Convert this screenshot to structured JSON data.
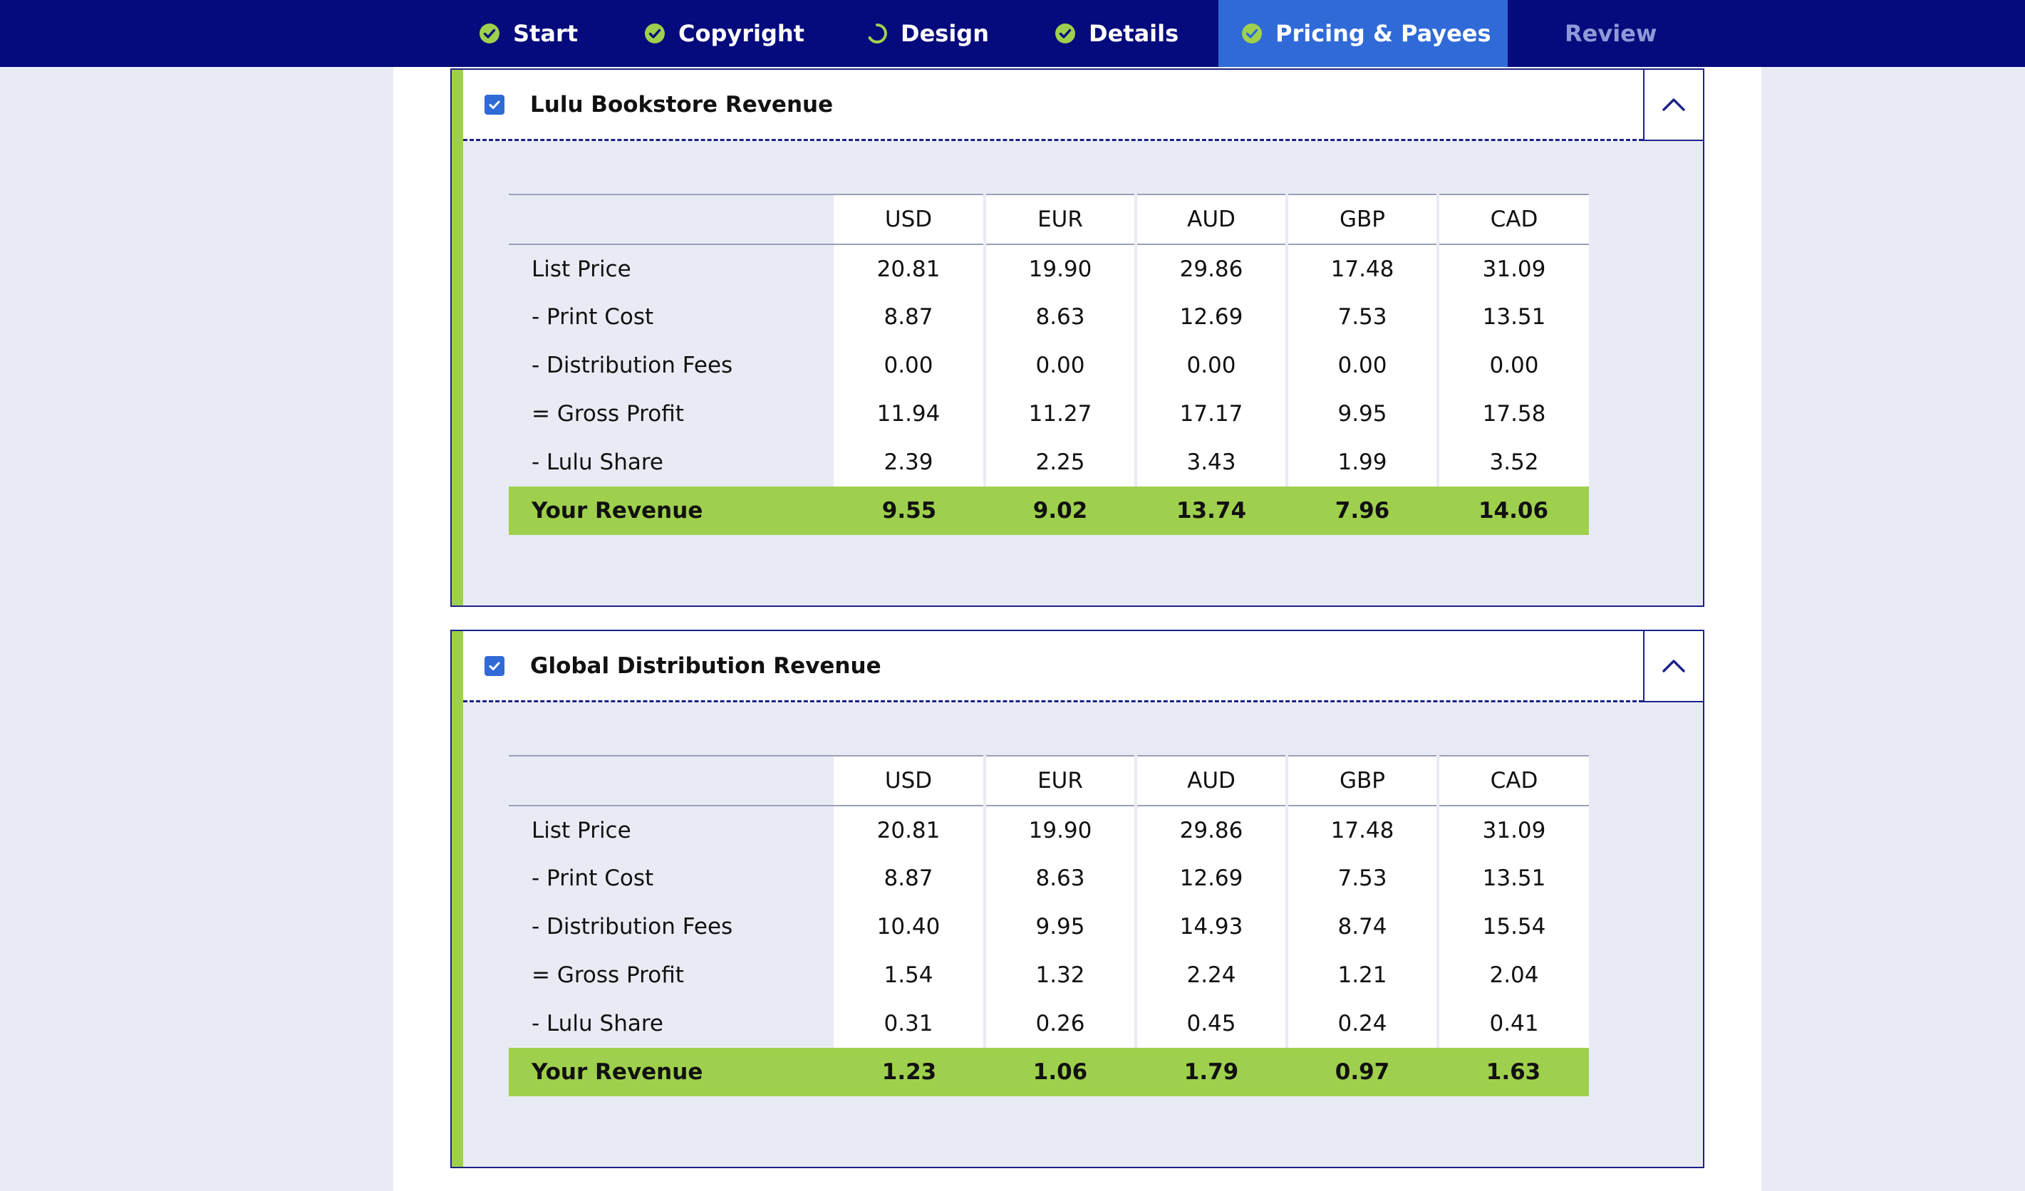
{
  "nav": {
    "tabs": [
      {
        "label": "Start",
        "icon": "check-circle-icon",
        "status": "complete"
      },
      {
        "label": "Copyright",
        "icon": "check-circle-icon",
        "status": "complete"
      },
      {
        "label": "Design",
        "icon": "progress-spinner-icon",
        "status": "in-progress"
      },
      {
        "label": "Details",
        "icon": "check-circle-icon",
        "status": "complete"
      },
      {
        "label": "Pricing & Payees",
        "icon": "check-circle-icon",
        "status": "active"
      },
      {
        "label": "Review",
        "icon": "",
        "status": "disabled"
      }
    ]
  },
  "colors": {
    "nav_bg": "#050b7c",
    "active_tab": "#2f6ad7",
    "accent_green": "#9fd04d",
    "border_navy": "#1b2289",
    "panel_bg": "#e9ebf4"
  },
  "sections": [
    {
      "title": "Lulu Bookstore Revenue",
      "checked": true,
      "currencies": [
        "USD",
        "EUR",
        "AUD",
        "GBP",
        "CAD"
      ],
      "rows": [
        {
          "label": "List Price",
          "values": [
            "20.81",
            "19.90",
            "29.86",
            "17.48",
            "31.09"
          ]
        },
        {
          "label": "- Print Cost",
          "values": [
            "8.87",
            "8.63",
            "12.69",
            "7.53",
            "13.51"
          ]
        },
        {
          "label": "- Distribution Fees",
          "values": [
            "0.00",
            "0.00",
            "0.00",
            "0.00",
            "0.00"
          ]
        },
        {
          "label": "= Gross Profit",
          "values": [
            "11.94",
            "11.27",
            "17.17",
            "9.95",
            "17.58"
          ]
        },
        {
          "label": "- Lulu Share",
          "values": [
            "2.39",
            "2.25",
            "3.43",
            "1.99",
            "3.52"
          ]
        },
        {
          "label": "Your Revenue",
          "values": [
            "9.55",
            "9.02",
            "13.74",
            "7.96",
            "14.06"
          ]
        }
      ]
    },
    {
      "title": "Global Distribution Revenue",
      "checked": true,
      "currencies": [
        "USD",
        "EUR",
        "AUD",
        "GBP",
        "CAD"
      ],
      "rows": [
        {
          "label": "List Price",
          "values": [
            "20.81",
            "19.90",
            "29.86",
            "17.48",
            "31.09"
          ]
        },
        {
          "label": "- Print Cost",
          "values": [
            "8.87",
            "8.63",
            "12.69",
            "7.53",
            "13.51"
          ]
        },
        {
          "label": "- Distribution Fees",
          "values": [
            "10.40",
            "9.95",
            "14.93",
            "8.74",
            "15.54"
          ]
        },
        {
          "label": "= Gross Profit",
          "values": [
            "1.54",
            "1.32",
            "2.24",
            "1.21",
            "2.04"
          ]
        },
        {
          "label": "- Lulu Share",
          "values": [
            "0.31",
            "0.26",
            "0.45",
            "0.24",
            "0.41"
          ]
        },
        {
          "label": "Your Revenue",
          "values": [
            "1.23",
            "1.06",
            "1.79",
            "0.97",
            "1.63"
          ]
        }
      ]
    }
  ]
}
